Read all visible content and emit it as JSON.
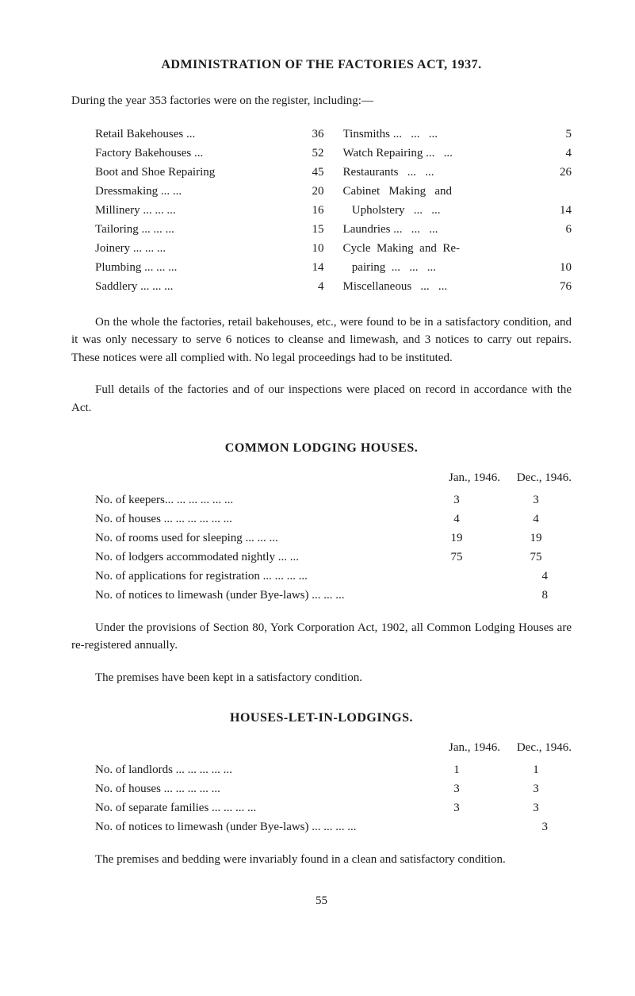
{
  "title": "ADMINISTRATION OF THE FACTORIES ACT, 1937.",
  "intro": "During the year 353 factories were on the register, including:—",
  "left_col": [
    {
      "label": "Retail Bakehouses",
      "dots": "...",
      "value": "36"
    },
    {
      "label": "Factory Bakehouses",
      "dots": "...",
      "value": "52"
    },
    {
      "label": "Boot and Shoe Repairing",
      "dots": "",
      "value": "45"
    },
    {
      "label": "Dressmaking",
      "dots": "...   ...",
      "value": "20"
    },
    {
      "label": "Millinery",
      "dots": "...   ...   ...",
      "value": "16"
    },
    {
      "label": "Tailoring",
      "dots": "...   ...   ...",
      "value": "15"
    },
    {
      "label": "Joinery",
      "dots": "...   ...   ...",
      "value": "10"
    },
    {
      "label": "Plumbing",
      "dots": "...   ...   ...",
      "value": "14"
    },
    {
      "label": "Saddlery",
      "dots": "...   ...   ...",
      "value": "4"
    }
  ],
  "right_col": [
    {
      "label": "Tinsmiths ...",
      "dots": "...   ...",
      "value": "5"
    },
    {
      "label": "Watch Repairing ...",
      "dots": "...",
      "value": "4"
    },
    {
      "label": "Restaurants",
      "dots": "...   ...",
      "value": "26"
    },
    {
      "label": "Cabinet   Making   and",
      "dots": "",
      "value": ""
    },
    {
      "label": "   Upholstery",
      "dots": "...   ...",
      "value": "14"
    },
    {
      "label": "Laundries ...",
      "dots": "...   ...",
      "value": "6"
    },
    {
      "label": "Cycle  Making  and  Re-",
      "dots": "",
      "value": ""
    },
    {
      "label": "   pairing  ...",
      "dots": "...   ...",
      "value": "10"
    },
    {
      "label": "Miscellaneous",
      "dots": "...   ...",
      "value": "76"
    }
  ],
  "para1": "On the whole the factories, retail bakehouses, etc., were found to be in a satisfactory condition, and it was only necessary to serve 6 notices to cleanse and limewash, and 3 notices to carry out repairs. These notices were all complied with. No legal proceedings had to be instituted.",
  "para2": "Full details of the factories and of our inspections were placed on record in accordance with the Act.",
  "section2_title": "COMMON LODGING HOUSES.",
  "section2_header_a": "Jan., 1946.",
  "section2_header_b": "Dec., 1946.",
  "section2_rows": [
    {
      "label": "No. of keepers...   ...   ...   ...   ...   ...",
      "a": "3",
      "b": "3"
    },
    {
      "label": "No. of houses ...   ...   ...   ...   ...   ...",
      "a": "4",
      "b": "4"
    },
    {
      "label": "No. of rooms used for sleeping   ...   ...   ...",
      "a": "19",
      "b": "19"
    },
    {
      "label": "No. of lodgers accommodated nightly   ...   ...",
      "a": "75",
      "b": "75"
    }
  ],
  "section2_single_rows": [
    {
      "label": "No. of applications for registration   ...   ...   ...   ...",
      "val": "4"
    },
    {
      "label": "No. of notices to limewash (under Bye-laws)   ...   ...   ...",
      "val": "8"
    }
  ],
  "para3": "Under the provisions of Section 80, York Corporation Act, 1902, all Common Lodging Houses are re-registered annually.",
  "para4": "The premises have been kept in a satisfactory condition.",
  "section3_title": "HOUSES-LET-IN-LODGINGS.",
  "section3_header_a": "Jan., 1946.",
  "section3_header_b": "Dec., 1946.",
  "section3_rows": [
    {
      "label": "No. of landlords   ...   ...   ...   ...   ...",
      "a": "1",
      "b": "1"
    },
    {
      "label": "No. of houses   ...   ...   ...   ...   ...",
      "a": "3",
      "b": "3"
    },
    {
      "label": "No. of separate families ...   ...   ...   ...",
      "a": "3",
      "b": "3"
    }
  ],
  "section3_single_rows": [
    {
      "label": "No. of notices to limewash (under Bye-laws) ...   ...   ...   ...",
      "val": "3"
    }
  ],
  "para5": "The premises and bedding were invariably found in a clean and satisfactory condition.",
  "page_number": "55"
}
